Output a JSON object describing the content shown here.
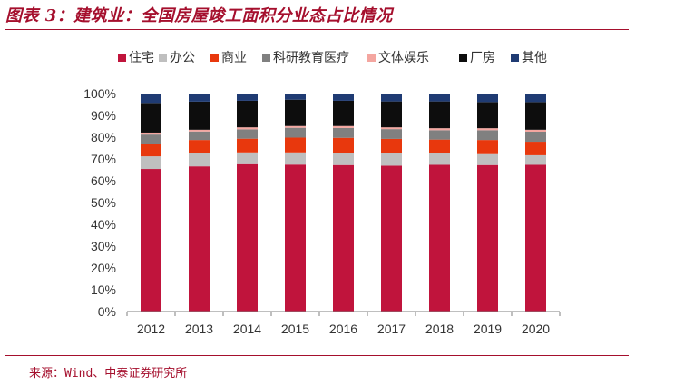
{
  "title": "图表 3：建筑业：全国房屋竣工面积分业态占比情况",
  "source": "来源：Wind、中泰证券研究所",
  "colors": {
    "accent": "#a50f2d",
    "住宅": "#c0143c",
    "办公": "#bfbfbf",
    "商业": "#e8380d",
    "科研教育医疗": "#808080",
    "文体娱乐": "#f4a6a0",
    "厂房": "#0d0d0d",
    "其他": "#1f3b73"
  },
  "chart_data": {
    "type": "bar",
    "stacked": true,
    "categories": [
      "2012",
      "2013",
      "2014",
      "2015",
      "2016",
      "2017",
      "2018",
      "2019",
      "2020"
    ],
    "y_ticks": [
      "0%",
      "10%",
      "20%",
      "30%",
      "40%",
      "50%",
      "60%",
      "70%",
      "80%",
      "90%",
      "100%"
    ],
    "ylim": [
      0,
      100
    ],
    "legend_position": "top",
    "series": [
      {
        "name": "住宅",
        "values": [
          65.4,
          66.6,
          67.6,
          67.4,
          67.2,
          66.9,
          67.3,
          67.2,
          67.3
        ]
      },
      {
        "name": "办公",
        "values": [
          5.8,
          6.0,
          5.4,
          5.6,
          5.7,
          5.6,
          5.2,
          5.0,
          4.4
        ]
      },
      {
        "name": "商业",
        "values": [
          5.8,
          6.1,
          6.3,
          6.8,
          6.8,
          6.7,
          6.4,
          6.5,
          6.2
        ]
      },
      {
        "name": "科研教育医疗",
        "values": [
          4.2,
          3.9,
          4.3,
          4.5,
          4.5,
          4.5,
          4.3,
          4.5,
          4.6
        ]
      },
      {
        "name": "文体娱乐",
        "values": [
          0.9,
          0.8,
          0.9,
          0.8,
          0.9,
          0.8,
          0.9,
          0.9,
          0.9
        ]
      },
      {
        "name": "厂房",
        "values": [
          13.6,
          12.9,
          12.2,
          12.1,
          11.6,
          11.9,
          12.3,
          12.0,
          12.7
        ]
      },
      {
        "name": "其他",
        "values": [
          4.3,
          3.7,
          3.3,
          2.8,
          3.3,
          3.6,
          3.6,
          3.9,
          3.9
        ]
      }
    ]
  }
}
